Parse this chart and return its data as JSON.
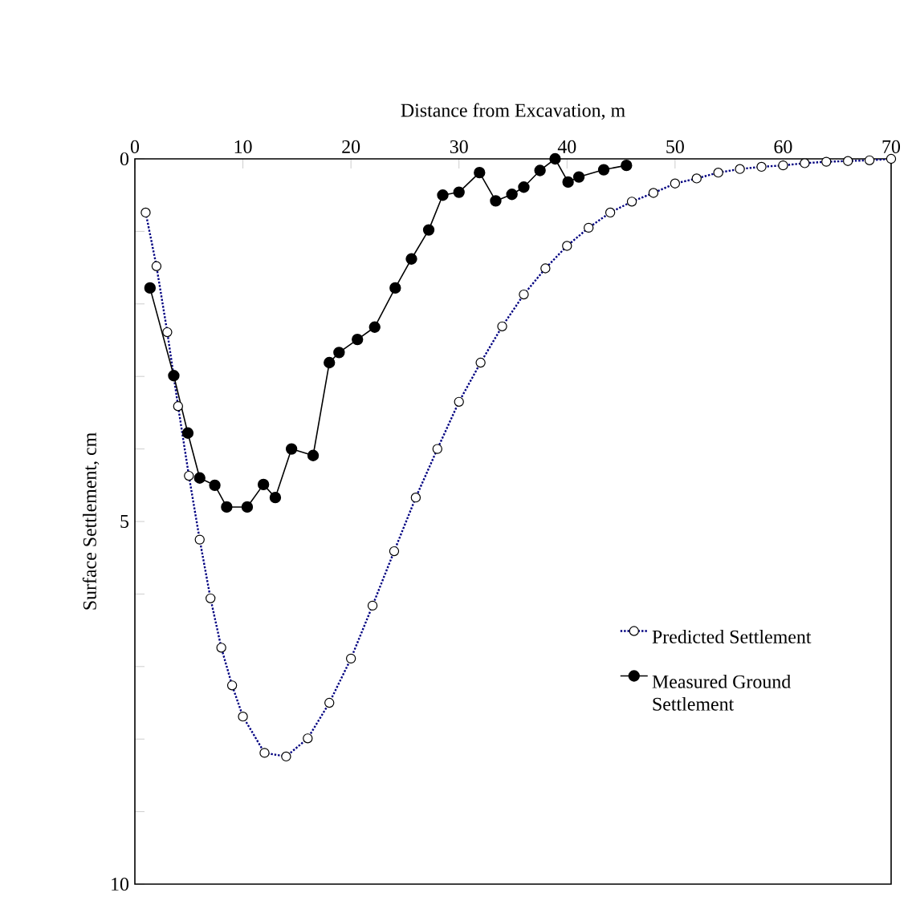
{
  "chart_data": {
    "type": "line",
    "xlabel": "Distance from Excavation, m",
    "ylabel": "Surface Settlement, cm",
    "xlim": [
      0,
      70
    ],
    "xticks": [
      0,
      10,
      20,
      30,
      40,
      50,
      60,
      70
    ],
    "ylim": [
      10,
      0
    ],
    "yticks": [
      0,
      {
        "value": 1,
        "label": null
      },
      {
        "value": 2,
        "label": null
      },
      {
        "value": 3,
        "label": null
      },
      {
        "value": 4,
        "label": null
      },
      5,
      {
        "value": 6,
        "label": null
      },
      {
        "value": 7,
        "label": null
      },
      {
        "value": 8,
        "label": null
      },
      {
        "value": 9,
        "label": null
      },
      10
    ],
    "legend": "bottom right",
    "marker": "circle",
    "series": [
      {
        "name": "Predicted Settlement",
        "color": "#000080",
        "line_style": "dotted",
        "x": [
          1,
          2,
          3,
          4,
          5,
          6,
          7,
          8,
          9,
          10,
          12,
          14,
          16,
          18,
          20,
          22,
          24,
          26,
          28,
          30,
          32,
          34,
          36,
          38,
          40,
          42,
          44,
          46,
          48,
          50,
          52,
          54,
          56,
          58,
          60,
          62,
          64,
          66,
          68,
          70
        ],
        "values": [
          0.74,
          1.48,
          2.39,
          3.41,
          4.37,
          5.25,
          6.06,
          6.74,
          7.26,
          7.69,
          8.19,
          8.24,
          7.99,
          7.5,
          6.89,
          6.16,
          5.41,
          4.67,
          4.0,
          3.35,
          2.81,
          2.31,
          1.87,
          1.51,
          1.2,
          0.95,
          0.74,
          0.59,
          0.47,
          0.34,
          0.27,
          0.19,
          0.14,
          0.11,
          0.09,
          0.06,
          0.04,
          0.03,
          0.02,
          0
        ]
      },
      {
        "name": "Measured Ground Settlement",
        "color": "#000000",
        "line_style": "solid",
        "x": [
          1.4,
          3.6,
          4.9,
          6.0,
          7.4,
          8.5,
          10.4,
          11.9,
          13.0,
          14.5,
          16.5,
          18.0,
          18.9,
          20.6,
          22.2,
          24.1,
          25.6,
          27.2,
          28.5,
          30.0,
          31.9,
          33.4,
          34.9,
          36.0,
          37.5,
          38.9,
          40.1,
          41.1,
          43.4,
          45.5
        ],
        "values": [
          1.78,
          2.99,
          3.78,
          4.4,
          4.5,
          4.8,
          4.8,
          4.49,
          4.67,
          4.0,
          4.09,
          2.81,
          2.67,
          2.49,
          2.32,
          1.78,
          1.38,
          0.98,
          0.5,
          0.46,
          0.19,
          0.58,
          0.49,
          0.39,
          0.16,
          0,
          0.32,
          0.25,
          0.15,
          0.09
        ]
      }
    ]
  }
}
